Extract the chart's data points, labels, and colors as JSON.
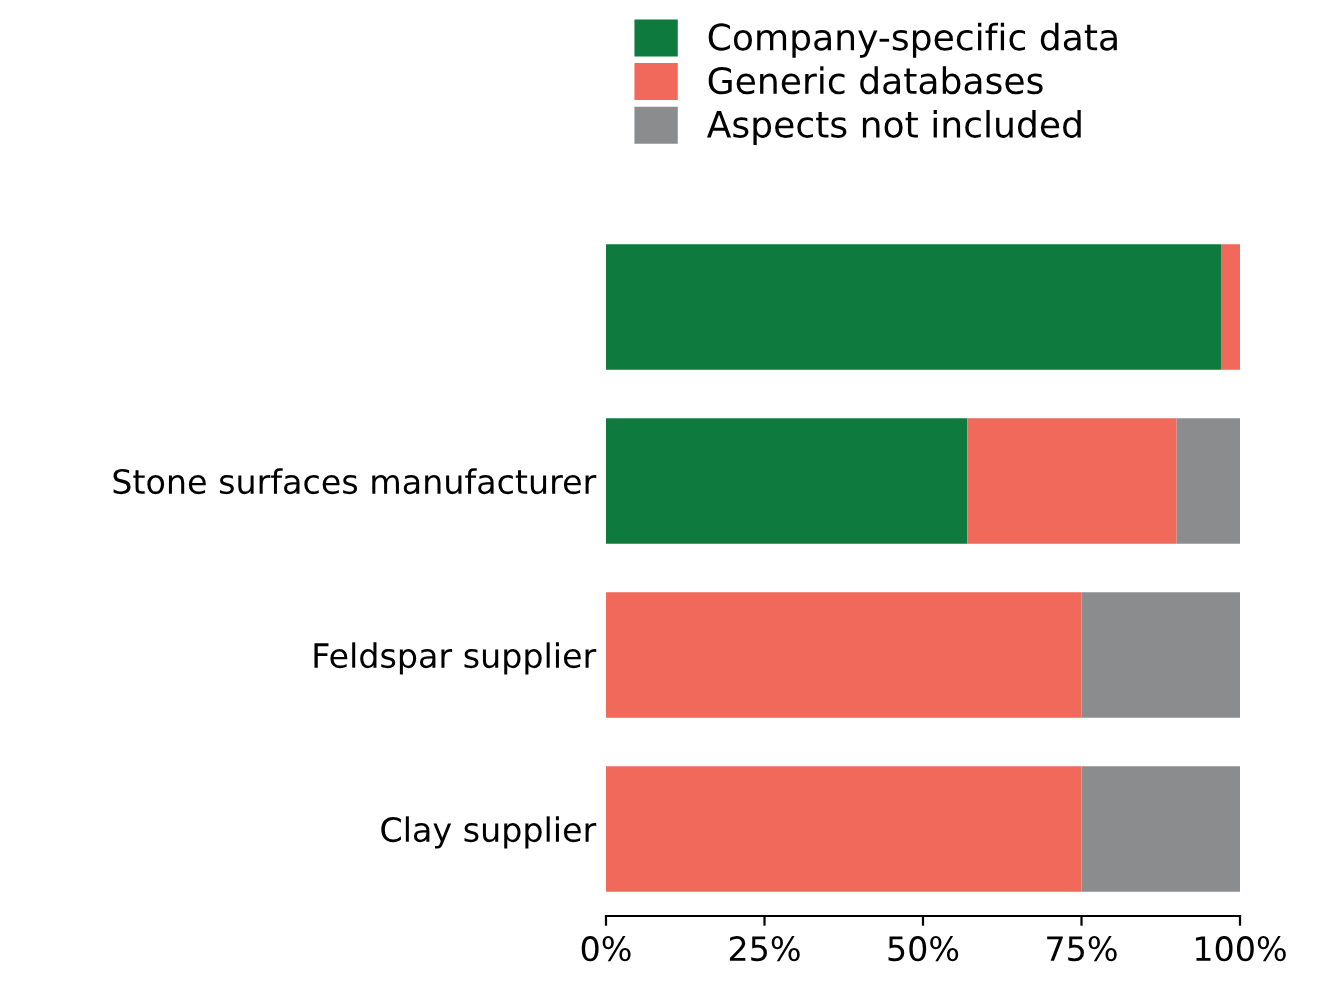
{
  "chart_data": {
    "type": "bar",
    "orientation": "horizontal",
    "stacked": true,
    "categories": [
      null,
      "Stone surfaces manufacturer",
      "Feldspar supplier",
      "Clay supplier"
    ],
    "series": [
      {
        "name": "Company-specific data",
        "color": "#0e7a3e",
        "values": [
          97,
          57,
          0,
          0
        ]
      },
      {
        "name": "Generic databases",
        "color": "#f0695a",
        "values": [
          3,
          33,
          75,
          75
        ]
      },
      {
        "name": "Aspects not included",
        "color": "#8a8c8e",
        "values": [
          0,
          10,
          25,
          25
        ]
      }
    ],
    "xlim": [
      0,
      100
    ],
    "xticks": [
      {
        "value": 0,
        "label": "0%"
      },
      {
        "value": 25,
        "label": "25%"
      },
      {
        "value": 50,
        "label": "50%"
      },
      {
        "value": 75,
        "label": "75%"
      },
      {
        "value": 100,
        "label": "100%"
      }
    ],
    "grid": false,
    "legend": "top"
  }
}
